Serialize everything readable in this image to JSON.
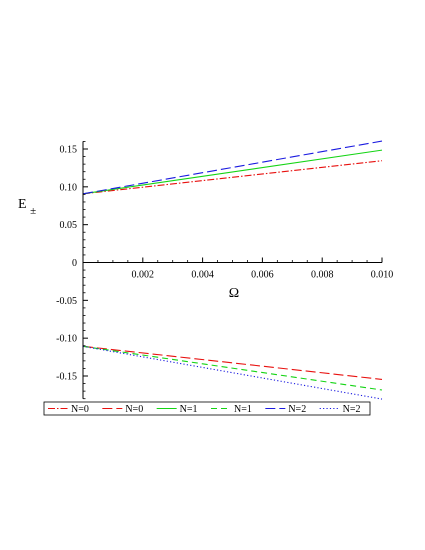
{
  "chart_data": {
    "type": "line",
    "title": "",
    "xlabel": "Ω",
    "ylabel": "E±",
    "ylabel_main": "E",
    "ylabel_sub": "±",
    "xlim": [
      0,
      0.01
    ],
    "ylim": [
      -0.18,
      0.16
    ],
    "x_ticks": [
      0.002,
      0.004,
      0.006,
      0.008,
      0.01
    ],
    "x_tick_labels": [
      "0.002",
      "0.004",
      "0.006",
      "0.008",
      "0.010"
    ],
    "y_ticks": [
      0.15,
      0.1,
      0.05,
      0,
      -0.05,
      -0.1,
      -0.15
    ],
    "y_tick_labels": [
      "0.15",
      "0.10",
      "0.05",
      "0",
      "-0.05",
      "-0.10",
      "-0.15"
    ],
    "grid": false,
    "legend_position": "bottom",
    "series": [
      {
        "name": "N=0",
        "color": "#e8100e",
        "dash": "dashdot",
        "x": [
          0,
          0.01
        ],
        "y": [
          0.0908,
          0.1345
        ]
      },
      {
        "name": "N=0",
        "color": "#e8100e",
        "dash": "longdash",
        "x": [
          0,
          0.01
        ],
        "y": [
          -0.1108,
          -0.1545
        ]
      },
      {
        "name": "N=1",
        "color": "#14d414",
        "dash": "solid",
        "x": [
          0,
          0.01
        ],
        "y": [
          0.0908,
          0.1485
        ]
      },
      {
        "name": "N=1",
        "color": "#14d414",
        "dash": "dash",
        "x": [
          0,
          0.01
        ],
        "y": [
          -0.1108,
          -0.1685
        ]
      },
      {
        "name": "N=2",
        "color": "#1a1ae0",
        "dash": "longdash",
        "x": [
          0,
          0.01
        ],
        "y": [
          0.0908,
          0.1605
        ]
      },
      {
        "name": "N=2",
        "color": "#1a1ae0",
        "dash": "dot",
        "x": [
          0,
          0.01
        ],
        "y": [
          -0.1108,
          -0.1805
        ]
      }
    ]
  }
}
